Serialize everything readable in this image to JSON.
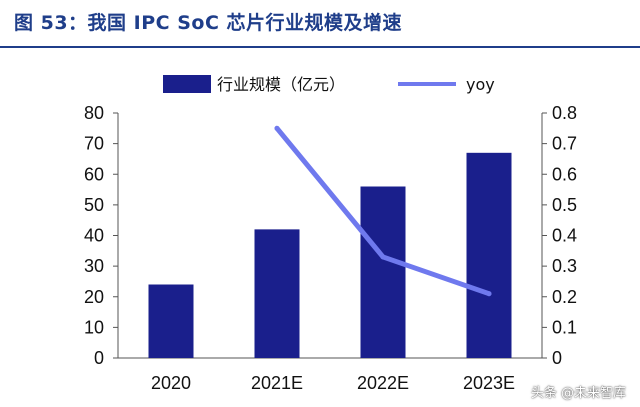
{
  "figure": {
    "title": "图 53：我国 IPC SoC 芯片行业规模及增速"
  },
  "watermark": "头条 @未来智库",
  "colors": {
    "title": "#1f3e8a",
    "bar": "#1a1f8c",
    "line": "#6f79ee",
    "axis": "#555555",
    "text": "#111111"
  },
  "chart_data": {
    "type": "bar",
    "categories": [
      "2020",
      "2021E",
      "2022E",
      "2023E"
    ],
    "series": [
      {
        "name": "行业规模（亿元）",
        "type": "bar",
        "axis": "left",
        "values": [
          24,
          42,
          56,
          67
        ]
      },
      {
        "name": "yoy",
        "type": "line",
        "axis": "right",
        "values": [
          null,
          0.75,
          0.33,
          0.21
        ]
      }
    ],
    "yaxis_left": {
      "range": [
        0,
        80
      ],
      "ticks": [
        "0",
        "10",
        "20",
        "30",
        "40",
        "50",
        "60",
        "70",
        "80"
      ]
    },
    "yaxis_right": {
      "range": [
        0,
        0.8
      ],
      "ticks": [
        "0",
        "0.1",
        "0.2",
        "0.3",
        "0.4",
        "0.5",
        "0.6",
        "0.7",
        "0.8"
      ]
    },
    "grid": false,
    "legend_position": "top"
  }
}
